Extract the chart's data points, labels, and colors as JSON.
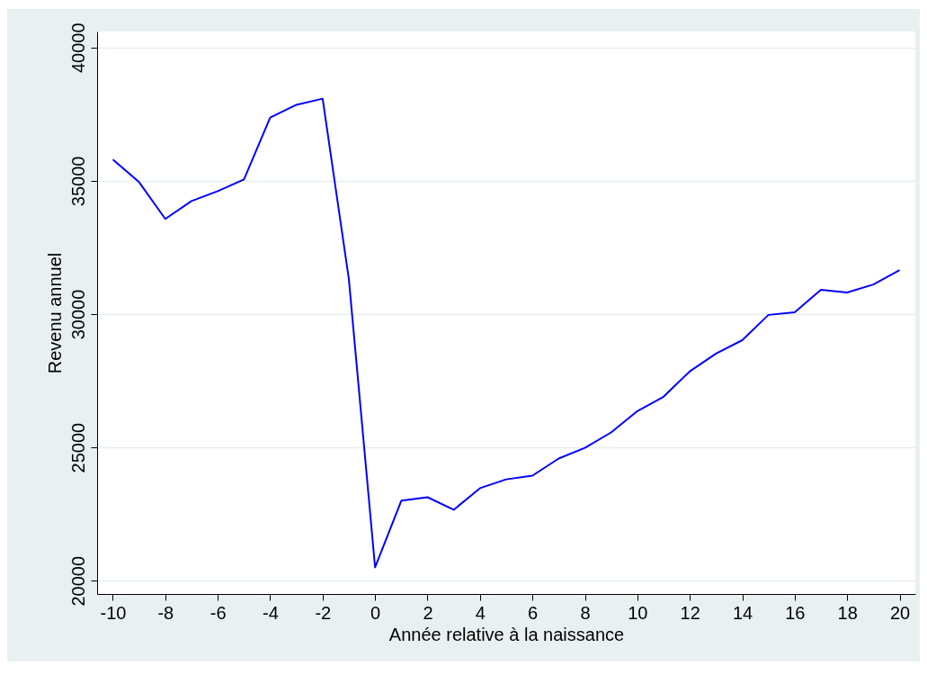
{
  "chart_data": {
    "type": "line",
    "xlabel": "Année relative à la naissance",
    "ylabel": "Revenu annuel",
    "x": [
      -10,
      -9,
      -8,
      -7,
      -6,
      -5,
      -4,
      -3,
      -2,
      -1,
      0,
      1,
      2,
      3,
      4,
      5,
      6,
      7,
      8,
      9,
      10,
      11,
      12,
      13,
      14,
      15,
      16,
      17,
      18,
      19,
      20
    ],
    "series": [
      {
        "color": "#0000ff",
        "values": [
          35800,
          34950,
          33570,
          34240,
          34610,
          35050,
          37370,
          37850,
          38080,
          31310,
          20500,
          23000,
          23130,
          22660,
          23470,
          23800,
          23940,
          24580,
          24980,
          25560,
          26360,
          26900,
          27850,
          28520,
          29020,
          29970,
          30070,
          30910,
          30810,
          31110,
          31650
        ]
      }
    ],
    "xlim": [
      -10.6,
      20.6
    ],
    "xticks": [
      -10,
      -8,
      -6,
      -4,
      -2,
      0,
      2,
      4,
      6,
      8,
      10,
      12,
      14,
      16,
      18,
      20
    ],
    "ylim": [
      19500,
      40600
    ],
    "yticks": [
      20000,
      25000,
      30000,
      35000,
      40000
    ],
    "grid": "y",
    "marker": "none",
    "line_style": "solid"
  }
}
